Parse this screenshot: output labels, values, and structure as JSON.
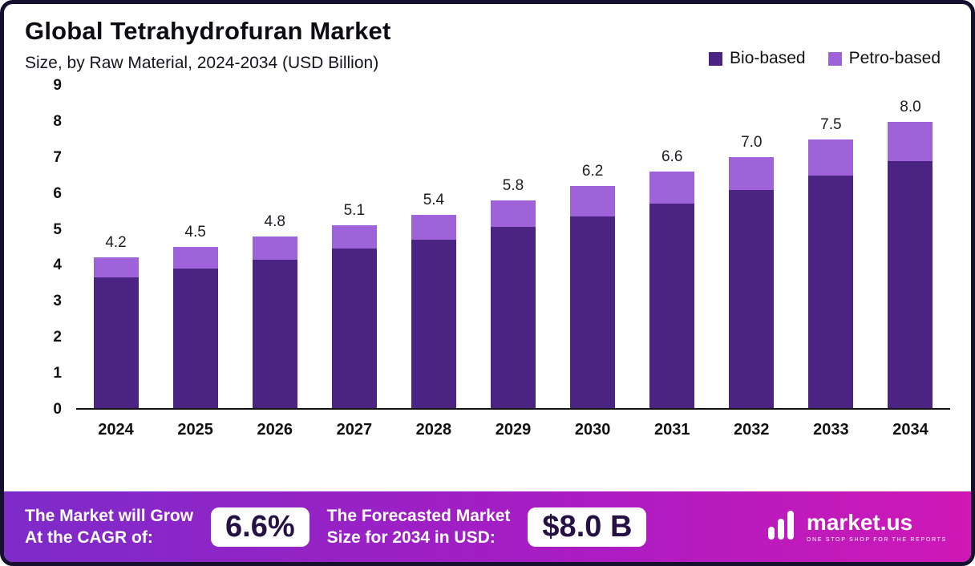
{
  "chart_data": {
    "type": "bar",
    "stacked": true,
    "title": "Global Tetrahydrofuran Market",
    "subtitle": "Size, by Raw Material, 2024-2034 (USD Billion)",
    "categories": [
      "2024",
      "2025",
      "2026",
      "2027",
      "2028",
      "2029",
      "2030",
      "2031",
      "2032",
      "2033",
      "2034"
    ],
    "series": [
      {
        "name": "Bio-based",
        "color": "#4a2383",
        "values": [
          3.65,
          3.9,
          4.15,
          4.45,
          4.7,
          5.05,
          5.35,
          5.7,
          6.1,
          6.5,
          6.9
        ]
      },
      {
        "name": "Petro-based",
        "color": "#9e63d8",
        "values": [
          0.55,
          0.6,
          0.65,
          0.65,
          0.7,
          0.75,
          0.85,
          0.9,
          0.9,
          1.0,
          1.1
        ]
      }
    ],
    "totals": [
      4.2,
      4.5,
      4.8,
      5.1,
      5.4,
      5.8,
      6.2,
      6.6,
      7.0,
      7.5,
      8.0
    ],
    "ylabel": "",
    "xlabel": "",
    "ylim": [
      0,
      9
    ],
    "yticks": [
      0,
      1,
      2,
      3,
      4,
      5,
      6,
      7,
      8,
      9
    ],
    "grid": false,
    "legend_position": "top-right"
  },
  "footer": {
    "cagr_label_line1": "The Market will Grow",
    "cagr_label_line2": "At the CAGR of:",
    "cagr_value": "6.6%",
    "forecast_label_line1": "The Forecasted Market",
    "forecast_label_line2": "Size for 2034 in USD:",
    "forecast_value": "$8.0 B",
    "brand": "market.us",
    "brand_tagline": "ONE STOP SHOP FOR THE REPORTS"
  }
}
